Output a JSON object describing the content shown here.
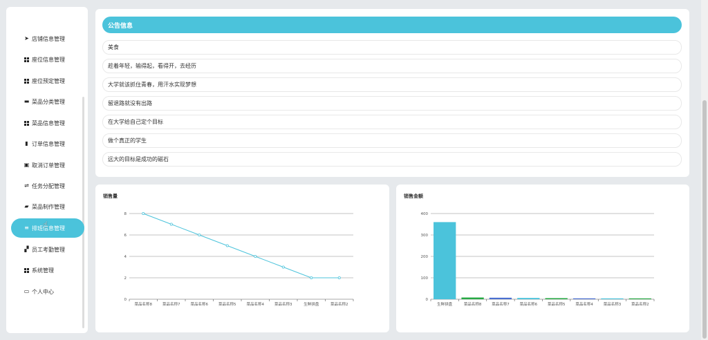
{
  "sidebar": {
    "items": [
      {
        "label": "店铺信息管理",
        "icon": "send-icon"
      },
      {
        "label": "座位信息管理",
        "icon": "grid-icon"
      },
      {
        "label": "座位预定管理",
        "icon": "grid-icon"
      },
      {
        "label": "菜品分类管理",
        "icon": "monitor-icon"
      },
      {
        "label": "菜品信息管理",
        "icon": "grid-icon"
      },
      {
        "label": "订单信息管理",
        "icon": "bar-chart-icon"
      },
      {
        "label": "取消订单管理",
        "icon": "cancel-order-icon"
      },
      {
        "label": "任务分配管理",
        "icon": "sliders-icon"
      },
      {
        "label": "菜品制作管理",
        "icon": "chat-icon"
      },
      {
        "label": "排班信息管理",
        "icon": "list-icon",
        "active": true
      },
      {
        "label": "员工考勤管理",
        "icon": "ticket-icon"
      },
      {
        "label": "系统管理",
        "icon": "grid-icon"
      },
      {
        "label": "个人中心",
        "icon": "window-icon"
      }
    ]
  },
  "notice": {
    "title": "公告信息",
    "items": [
      "美食",
      "趁着年轻，输得起，看得开，去经历",
      "大学就该抓住青春，用汗水实现梦想",
      "留退路就没有出路",
      "在大学给自己定个目标",
      "做个真正的学生",
      "远大的目标是成功的磁石"
    ]
  },
  "charts": {
    "sales_count_title": "销售量",
    "sales_amount_title": "销售金额"
  },
  "chart_data": [
    {
      "type": "line",
      "title": "销售量",
      "categories": [
        "菜品名称8",
        "菜品名称7",
        "菜品名称6",
        "菜品名称5",
        "菜品名称4",
        "菜品名称3",
        "生鲜拼盘",
        "菜品名称2"
      ],
      "values": [
        8,
        7,
        6,
        5,
        4,
        3,
        2,
        2
      ],
      "ylim": [
        0,
        8
      ],
      "yticks": [
        0,
        2,
        4,
        6,
        8
      ],
      "color": "#4bc3db",
      "grid": true
    },
    {
      "type": "bar",
      "title": "销售金额",
      "categories": [
        "生鲜拼盘",
        "菜品名称8",
        "菜品名称7",
        "菜品名称6",
        "菜品名称5",
        "菜品名称4",
        "菜品名称3",
        "菜品名称2"
      ],
      "values": [
        360,
        8,
        7,
        6,
        5,
        4,
        3,
        2
      ],
      "colors": [
        "#4bc3db",
        "#27a844",
        "#4a6fd0",
        "#4bc3db",
        "#27a844",
        "#4a6fd0",
        "#4bc3db",
        "#27a844"
      ],
      "ylim": [
        0,
        400
      ],
      "yticks": [
        0,
        100,
        200,
        300,
        400
      ],
      "grid": true
    }
  ]
}
